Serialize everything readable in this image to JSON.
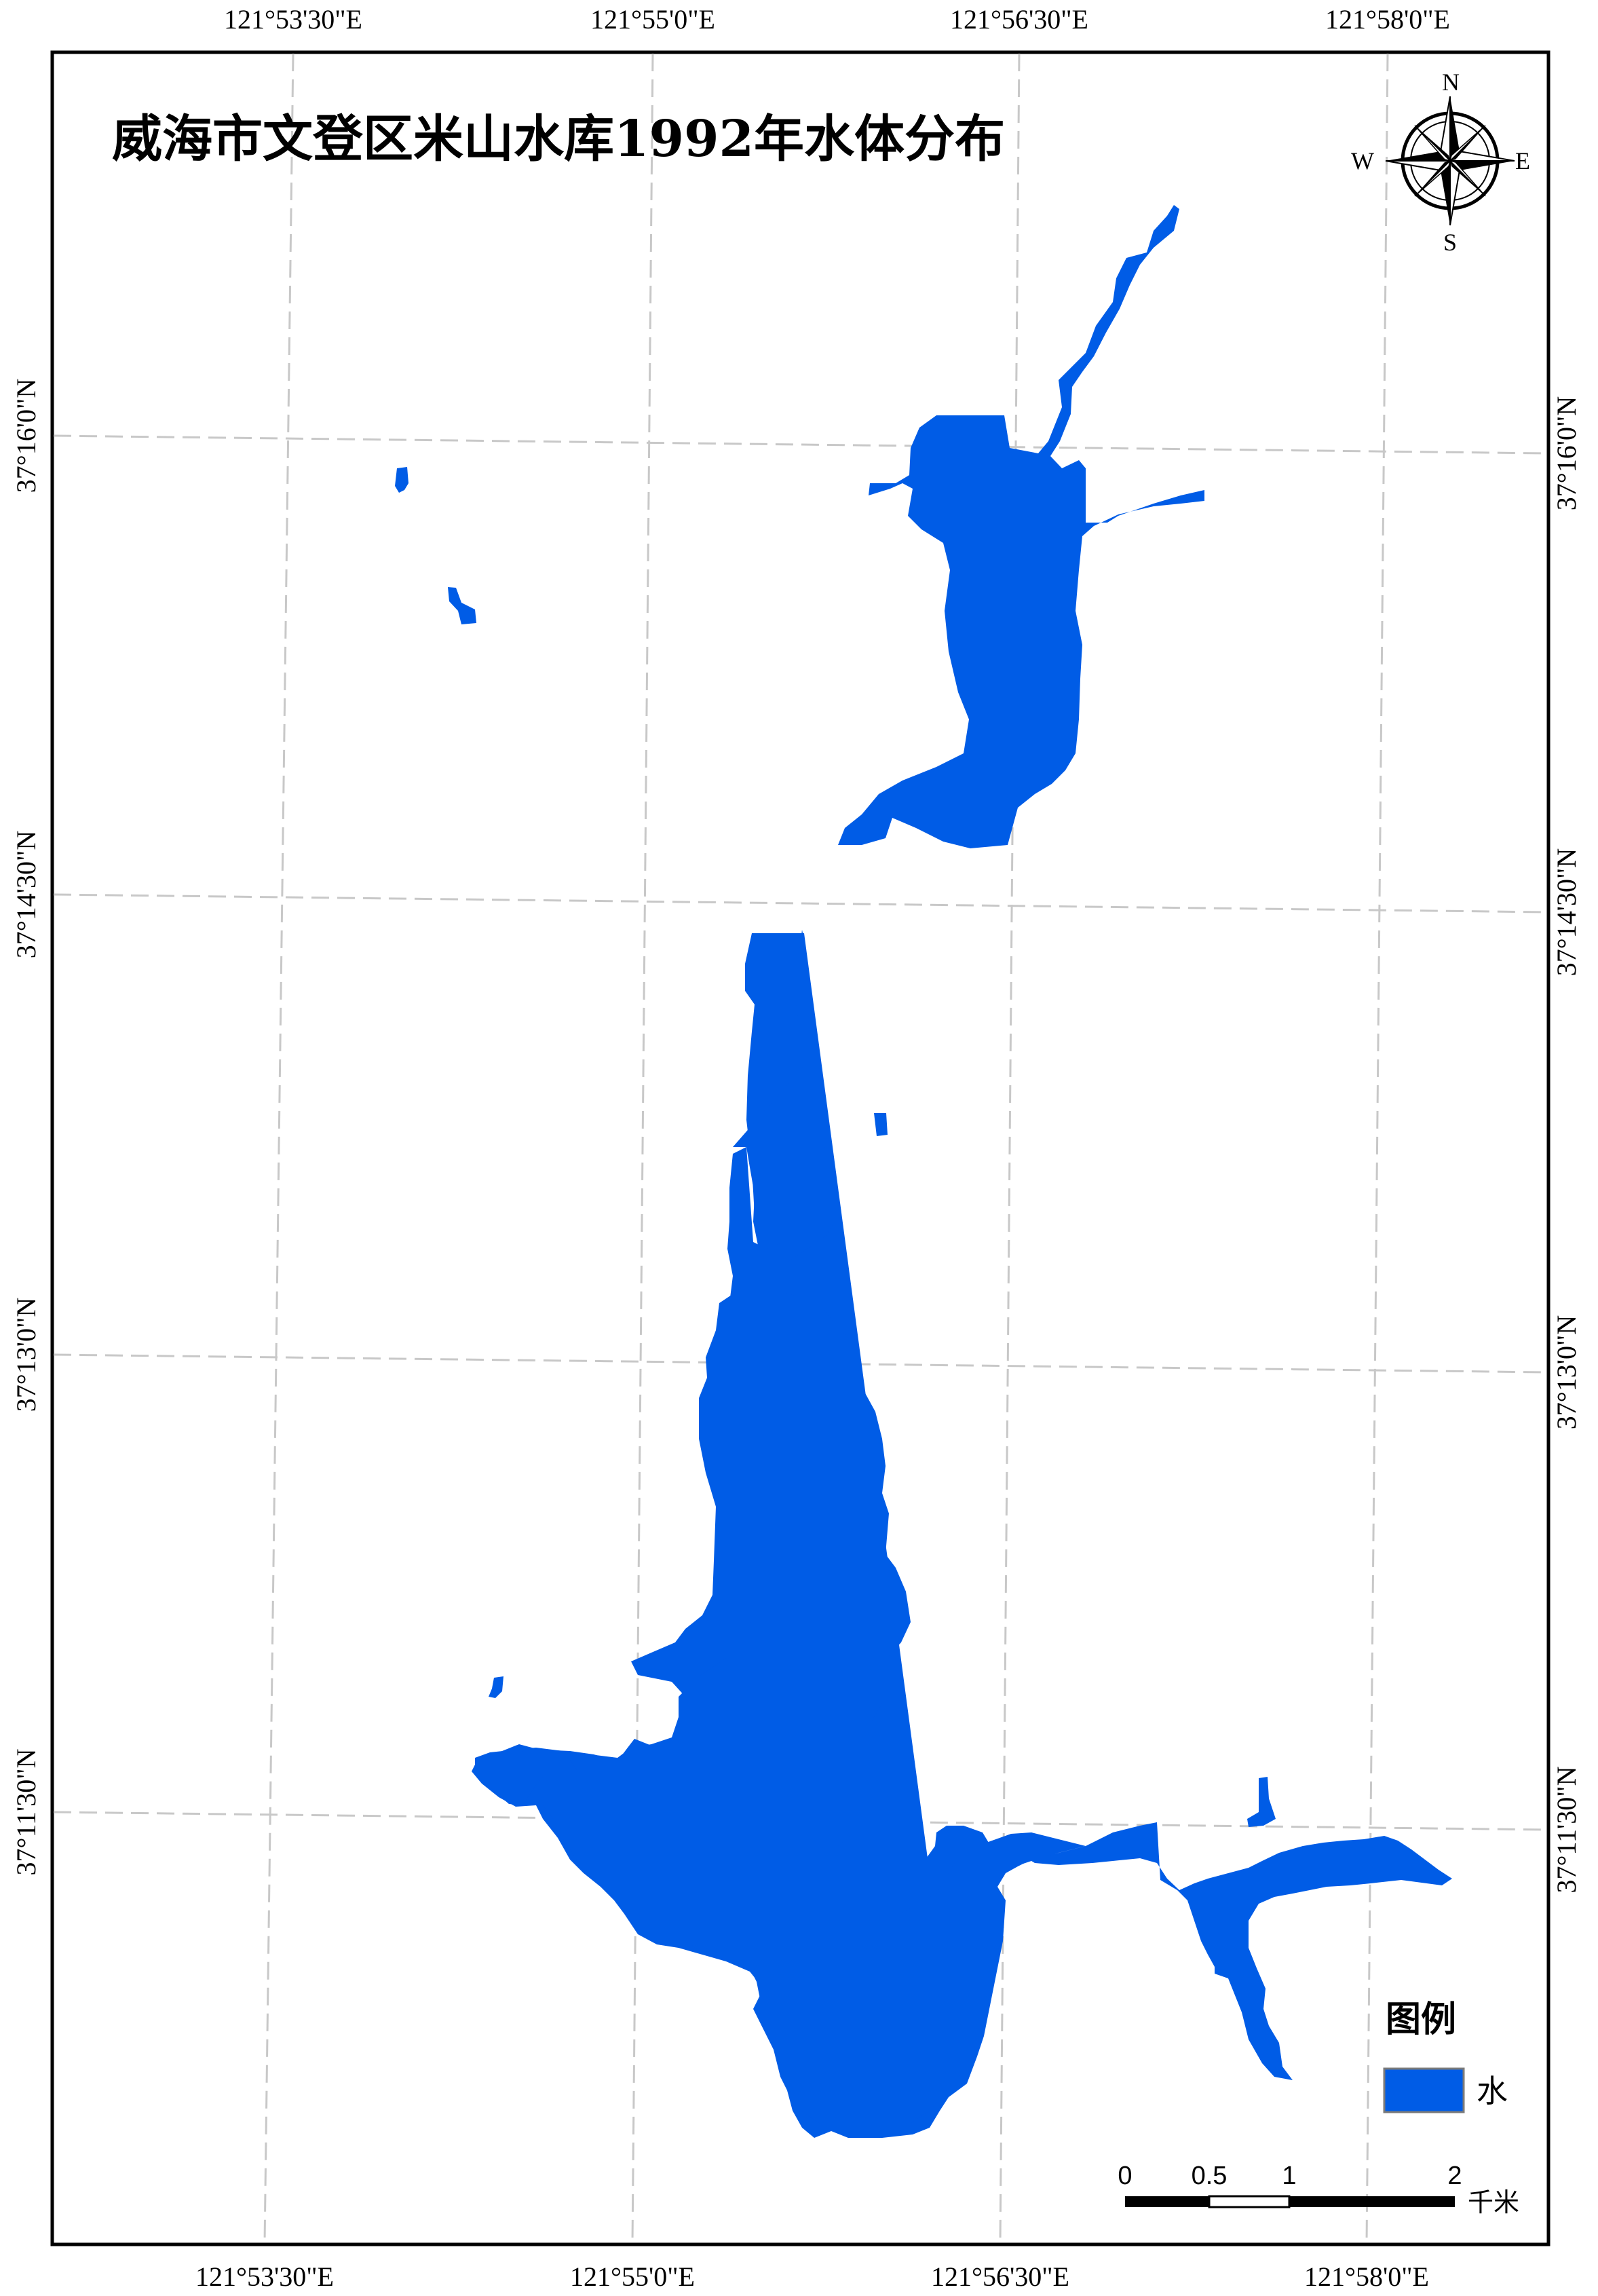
{
  "map": {
    "title": "威海市文登区米山水库1992年水体分布",
    "water_color": "#005ce6",
    "frame_color": "#000000",
    "grid_color": "#c8c8c8"
  },
  "longitude_labels": [
    "121°53'30\"E",
    "121°55'0\"E",
    "121°56'30\"E",
    "121°58'0\"E"
  ],
  "latitude_labels": [
    "37°16'0\"N",
    "37°14'30\"N",
    "37°13'0\"N",
    "37°11'30\"N"
  ],
  "north_arrow": {
    "icon": "compass-rose-icon",
    "n": "N",
    "s": "S",
    "e": "E",
    "w": "W"
  },
  "legend": {
    "title": "图例",
    "items": [
      {
        "label": "水",
        "color": "#005ce6"
      }
    ]
  },
  "scale_bar": {
    "ticks": [
      "0",
      "0.5",
      "1",
      "2"
    ],
    "unit": "千米"
  }
}
